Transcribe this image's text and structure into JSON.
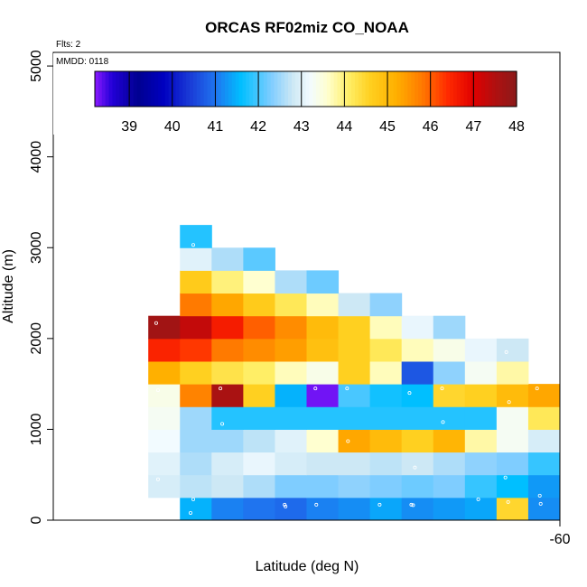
{
  "chart_data": {
    "type": "heatmap",
    "title": "ORCAS RF02miz CO_NOAA",
    "annotations": [
      "Flts: 2",
      "MMDD: 0118"
    ],
    "xlabel": "Latitude (deg N)",
    "ylabel": "Altitude (m)",
    "x_ticks": [
      "-60"
    ],
    "y_ticks": [
      "0",
      "1000",
      "2000",
      "3000",
      "4000",
      "5000"
    ],
    "x_cols": 16,
    "col_at_x_tick": 15,
    "ylim": [
      0,
      5150
    ],
    "bin_height_m": 250,
    "colorbar": {
      "min": 38.2,
      "max": 48,
      "ticks": [
        "39",
        "40",
        "41",
        "42",
        "43",
        "44",
        "45",
        "46",
        "47",
        "48"
      ],
      "tick_values": [
        39,
        40,
        41,
        42,
        43,
        44,
        45,
        46,
        47,
        48
      ],
      "stops": [
        [
          38.2,
          "#8b1aff"
        ],
        [
          38.6,
          "#2200d8"
        ],
        [
          39.2,
          "#000090"
        ],
        [
          39.8,
          "#0000c0"
        ],
        [
          40.4,
          "#1a3ad6"
        ],
        [
          41.0,
          "#1f74ef"
        ],
        [
          41.6,
          "#00bfff"
        ],
        [
          42.3,
          "#7fcdff"
        ],
        [
          42.8,
          "#cde8f5"
        ],
        [
          43.2,
          "#f2fbff"
        ],
        [
          43.6,
          "#ffffd0"
        ],
        [
          44.1,
          "#ffee66"
        ],
        [
          44.6,
          "#ffd020"
        ],
        [
          45.2,
          "#ffb000"
        ],
        [
          45.8,
          "#ff7a00"
        ],
        [
          46.4,
          "#ff2a00"
        ],
        [
          47.0,
          "#e00000"
        ],
        [
          47.5,
          "#b01010"
        ],
        [
          48.0,
          "#8b1a1a"
        ]
      ]
    },
    "cells": [
      {
        "col": 4,
        "alt": 0,
        "v": 41.5
      },
      {
        "col": 5,
        "alt": 0,
        "v": 41.1
      },
      {
        "col": 6,
        "alt": 0,
        "v": 41.0
      },
      {
        "col": 7,
        "alt": 0,
        "v": 40.9
      },
      {
        "col": 8,
        "alt": 0,
        "v": 41.1
      },
      {
        "col": 9,
        "alt": 0,
        "v": 41.2
      },
      {
        "col": 10,
        "alt": 0,
        "v": 41.4
      },
      {
        "col": 11,
        "alt": 0,
        "v": 41.2
      },
      {
        "col": 12,
        "alt": 0,
        "v": 41.3
      },
      {
        "col": 13,
        "alt": 0,
        "v": 41.4
      },
      {
        "col": 14,
        "alt": 0,
        "v": 44.5
      },
      {
        "col": 15,
        "alt": 0,
        "v": 41.2
      },
      {
        "col": 3,
        "alt": 250,
        "v": 42.9
      },
      {
        "col": 4,
        "alt": 250,
        "v": 42.7
      },
      {
        "col": 5,
        "alt": 250,
        "v": 42.8
      },
      {
        "col": 6,
        "alt": 250,
        "v": 42.6
      },
      {
        "col": 7,
        "alt": 250,
        "v": 42.3
      },
      {
        "col": 8,
        "alt": 250,
        "v": 42.3
      },
      {
        "col": 9,
        "alt": 250,
        "v": 42.4
      },
      {
        "col": 10,
        "alt": 250,
        "v": 42.3
      },
      {
        "col": 11,
        "alt": 250,
        "v": 42.2
      },
      {
        "col": 12,
        "alt": 250,
        "v": 42.3
      },
      {
        "col": 13,
        "alt": 250,
        "v": 41.9
      },
      {
        "col": 14,
        "alt": 250,
        "v": 41.6
      },
      {
        "col": 15,
        "alt": 250,
        "v": 41.3
      },
      {
        "col": 3,
        "alt": 500,
        "v": 43.0
      },
      {
        "col": 4,
        "alt": 500,
        "v": 42.6
      },
      {
        "col": 5,
        "alt": 500,
        "v": 42.9
      },
      {
        "col": 6,
        "alt": 500,
        "v": 43.1
      },
      {
        "col": 7,
        "alt": 500,
        "v": 42.9
      },
      {
        "col": 8,
        "alt": 500,
        "v": 42.8
      },
      {
        "col": 9,
        "alt": 500,
        "v": 42.8
      },
      {
        "col": 10,
        "alt": 500,
        "v": 42.7
      },
      {
        "col": 11,
        "alt": 500,
        "v": 42.8
      },
      {
        "col": 12,
        "alt": 500,
        "v": 42.6
      },
      {
        "col": 13,
        "alt": 500,
        "v": 42.4
      },
      {
        "col": 14,
        "alt": 500,
        "v": 42.3
      },
      {
        "col": 15,
        "alt": 500,
        "v": 41.9
      },
      {
        "col": 3,
        "alt": 750,
        "v": 43.2
      },
      {
        "col": 4,
        "alt": 750,
        "v": 42.5
      },
      {
        "col": 5,
        "alt": 750,
        "v": 42.5
      },
      {
        "col": 6,
        "alt": 750,
        "v": 42.7
      },
      {
        "col": 7,
        "alt": 750,
        "v": 43.0
      },
      {
        "col": 8,
        "alt": 750,
        "v": 43.6
      },
      {
        "col": 9,
        "alt": 750,
        "v": 45.3
      },
      {
        "col": 10,
        "alt": 750,
        "v": 45.0
      },
      {
        "col": 11,
        "alt": 750,
        "v": 44.6
      },
      {
        "col": 12,
        "alt": 750,
        "v": 45.1
      },
      {
        "col": 13,
        "alt": 750,
        "v": 43.8
      },
      {
        "col": 14,
        "alt": 750,
        "v": 43.3
      },
      {
        "col": 15,
        "alt": 750,
        "v": 42.9
      },
      {
        "col": 3,
        "alt": 1000,
        "v": 43.3
      },
      {
        "col": 4,
        "alt": 1000,
        "v": 42.5
      },
      {
        "col": 5,
        "alt": 1000,
        "v": 41.8
      },
      {
        "col": 6,
        "alt": 1000,
        "v": 41.8
      },
      {
        "col": 7,
        "alt": 1000,
        "v": 41.8
      },
      {
        "col": 8,
        "alt": 1000,
        "v": 41.8
      },
      {
        "col": 9,
        "alt": 1000,
        "v": 41.8
      },
      {
        "col": 10,
        "alt": 1000,
        "v": 41.8
      },
      {
        "col": 11,
        "alt": 1000,
        "v": 41.8
      },
      {
        "col": 12,
        "alt": 1000,
        "v": 41.8
      },
      {
        "col": 13,
        "alt": 1000,
        "v": 41.8
      },
      {
        "col": 14,
        "alt": 1000,
        "v": 43.3
      },
      {
        "col": 15,
        "alt": 1000,
        "v": 44.2
      },
      {
        "col": 3,
        "alt": 1250,
        "v": 43.4
      },
      {
        "col": 4,
        "alt": 1250,
        "v": 45.7
      },
      {
        "col": 5,
        "alt": 1250,
        "v": 47.6
      },
      {
        "col": 6,
        "alt": 1250,
        "v": 44.6
      },
      {
        "col": 7,
        "alt": 1250,
        "v": 41.5
      },
      {
        "col": 8,
        "alt": 1250,
        "v": 38.3
      },
      {
        "col": 9,
        "alt": 1250,
        "v": 42.0
      },
      {
        "col": 10,
        "alt": 1250,
        "v": 41.7
      },
      {
        "col": 11,
        "alt": 1250,
        "v": 41.6
      },
      {
        "col": 12,
        "alt": 1250,
        "v": 44.5
      },
      {
        "col": 13,
        "alt": 1250,
        "v": 44.6
      },
      {
        "col": 14,
        "alt": 1250,
        "v": 45.0
      },
      {
        "col": 15,
        "alt": 1250,
        "v": 45.3
      },
      {
        "col": 3,
        "alt": 1500,
        "v": 45.2
      },
      {
        "col": 4,
        "alt": 1500,
        "v": 44.6
      },
      {
        "col": 5,
        "alt": 1500,
        "v": 44.3
      },
      {
        "col": 6,
        "alt": 1500,
        "v": 44.1
      },
      {
        "col": 7,
        "alt": 1500,
        "v": 43.7
      },
      {
        "col": 8,
        "alt": 1500,
        "v": 43.4
      },
      {
        "col": 9,
        "alt": 1500,
        "v": 44.6
      },
      {
        "col": 10,
        "alt": 1500,
        "v": 43.7
      },
      {
        "col": 11,
        "alt": 1500,
        "v": 40.7
      },
      {
        "col": 12,
        "alt": 1500,
        "v": 42.4
      },
      {
        "col": 13,
        "alt": 1500,
        "v": 43.3
      },
      {
        "col": 14,
        "alt": 1500,
        "v": 43.8
      },
      {
        "col": 3,
        "alt": 1750,
        "v": 46.5
      },
      {
        "col": 4,
        "alt": 1750,
        "v": 46.3
      },
      {
        "col": 5,
        "alt": 1750,
        "v": 45.8
      },
      {
        "col": 6,
        "alt": 1750,
        "v": 45.6
      },
      {
        "col": 7,
        "alt": 1750,
        "v": 45.4
      },
      {
        "col": 8,
        "alt": 1750,
        "v": 44.9
      },
      {
        "col": 9,
        "alt": 1750,
        "v": 44.6
      },
      {
        "col": 10,
        "alt": 1750,
        "v": 44.2
      },
      {
        "col": 11,
        "alt": 1750,
        "v": 43.7
      },
      {
        "col": 12,
        "alt": 1750,
        "v": 43.4
      },
      {
        "col": 13,
        "alt": 1750,
        "v": 43.1
      },
      {
        "col": 14,
        "alt": 1750,
        "v": 42.8
      },
      {
        "col": 3,
        "alt": 2000,
        "v": 47.7
      },
      {
        "col": 4,
        "alt": 2000,
        "v": 47.3
      },
      {
        "col": 5,
        "alt": 2000,
        "v": 46.6
      },
      {
        "col": 6,
        "alt": 2000,
        "v": 46.0
      },
      {
        "col": 7,
        "alt": 2000,
        "v": 45.6
      },
      {
        "col": 8,
        "alt": 2000,
        "v": 45.0
      },
      {
        "col": 9,
        "alt": 2000,
        "v": 44.6
      },
      {
        "col": 10,
        "alt": 2000,
        "v": 43.7
      },
      {
        "col": 11,
        "alt": 2000,
        "v": 43.1
      },
      {
        "col": 12,
        "alt": 2000,
        "v": 42.5
      },
      {
        "col": 4,
        "alt": 2250,
        "v": 45.8
      },
      {
        "col": 5,
        "alt": 2250,
        "v": 45.3
      },
      {
        "col": 6,
        "alt": 2250,
        "v": 44.7
      },
      {
        "col": 7,
        "alt": 2250,
        "v": 44.2
      },
      {
        "col": 8,
        "alt": 2250,
        "v": 43.7
      },
      {
        "col": 9,
        "alt": 2250,
        "v": 42.8
      },
      {
        "col": 10,
        "alt": 2250,
        "v": 42.4
      },
      {
        "col": 4,
        "alt": 2500,
        "v": 44.7
      },
      {
        "col": 5,
        "alt": 2500,
        "v": 44.0
      },
      {
        "col": 6,
        "alt": 2500,
        "v": 43.6
      },
      {
        "col": 7,
        "alt": 2500,
        "v": 42.6
      },
      {
        "col": 8,
        "alt": 2500,
        "v": 42.2
      },
      {
        "col": 4,
        "alt": 2750,
        "v": 43.0
      },
      {
        "col": 5,
        "alt": 2750,
        "v": 42.6
      },
      {
        "col": 6,
        "alt": 2750,
        "v": 42.1
      },
      {
        "col": 4,
        "alt": 3000,
        "v": 41.8
      }
    ],
    "sample_points": [
      {
        "col": 4,
        "alt": 80
      },
      {
        "col": 4,
        "alt": 230
      },
      {
        "col": 7,
        "alt": 150
      },
      {
        "col": 7,
        "alt": 170
      },
      {
        "col": 8,
        "alt": 170
      },
      {
        "col": 10,
        "alt": 170
      },
      {
        "col": 11,
        "alt": 170
      },
      {
        "col": 11,
        "alt": 165
      },
      {
        "col": 13,
        "alt": 230
      },
      {
        "col": 14,
        "alt": 200
      },
      {
        "col": 15,
        "alt": 270
      },
      {
        "col": 15,
        "alt": 180
      },
      {
        "col": 3,
        "alt": 450
      },
      {
        "col": 14,
        "alt": 470
      },
      {
        "col": 11,
        "alt": 580
      },
      {
        "col": 9,
        "alt": 870
      },
      {
        "col": 5,
        "alt": 1060
      },
      {
        "col": 12,
        "alt": 1080
      },
      {
        "col": 3,
        "alt": 1430
      },
      {
        "col": 5,
        "alt": 1450
      },
      {
        "col": 9,
        "alt": 1450
      },
      {
        "col": 8,
        "alt": 1450
      },
      {
        "col": 11,
        "alt": 1400
      },
      {
        "col": 12,
        "alt": 1450
      },
      {
        "col": 14,
        "alt": 1300
      },
      {
        "col": 15,
        "alt": 1450
      },
      {
        "col": 3,
        "alt": 2170
      },
      {
        "col": 4,
        "alt": 3030
      },
      {
        "col": 14,
        "alt": 1850
      }
    ]
  }
}
